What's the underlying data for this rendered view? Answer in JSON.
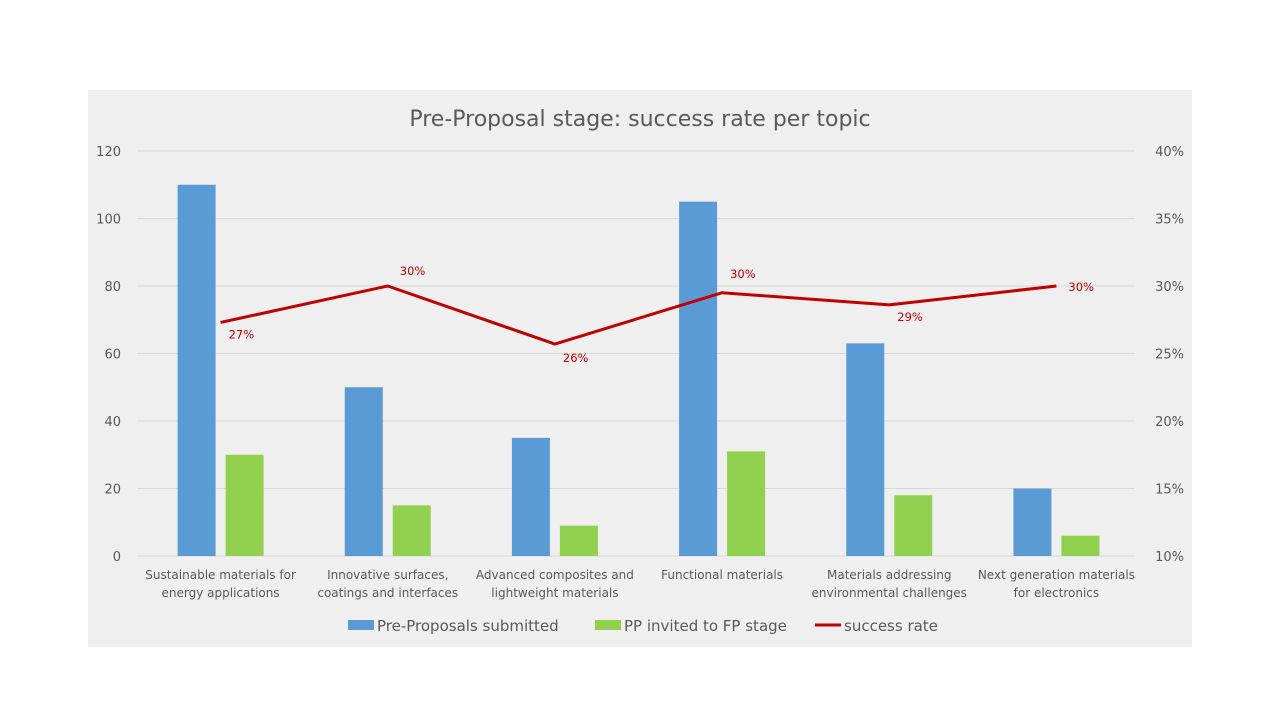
{
  "chart_data": {
    "type": "bar",
    "title": "Pre-Proposal stage: success rate per topic",
    "categories": [
      [
        "Sustainable materials for",
        "energy applications"
      ],
      [
        "Innovative surfaces,",
        "coatings and interfaces"
      ],
      [
        "Advanced composites and",
        "lightweight materials"
      ],
      [
        "Functional materials"
      ],
      [
        "Materials addressing",
        "environmental challenges"
      ],
      [
        "Next generation materials",
        "for electronics"
      ]
    ],
    "series": [
      {
        "name": "Pre-Proposals submitted",
        "type": "bar",
        "axis": "left",
        "color": "#5b9bd5",
        "values": [
          110,
          50,
          35,
          105,
          63,
          20
        ]
      },
      {
        "name": "PP invited to FP stage",
        "type": "bar",
        "axis": "left",
        "color": "#92d050",
        "values": [
          30,
          15,
          9,
          31,
          18,
          6
        ]
      },
      {
        "name": "success rate",
        "type": "line",
        "axis": "right",
        "color": "#c00000",
        "values": [
          27.3,
          30,
          25.7,
          29.5,
          28.6,
          30
        ],
        "labels": [
          "27%",
          "30%",
          "26%",
          "30%",
          "29%",
          "30%"
        ]
      }
    ],
    "y_left": {
      "min": 0,
      "max": 120,
      "ticks": [
        0,
        20,
        40,
        60,
        80,
        100,
        120
      ]
    },
    "y_right": {
      "min": 10,
      "max": 40,
      "ticks": [
        "10%",
        "15%",
        "20%",
        "25%",
        "30%",
        "35%",
        "40%"
      ],
      "tick_values": [
        10,
        15,
        20,
        25,
        30,
        35,
        40
      ]
    },
    "grid": true,
    "legend": "bottom"
  }
}
